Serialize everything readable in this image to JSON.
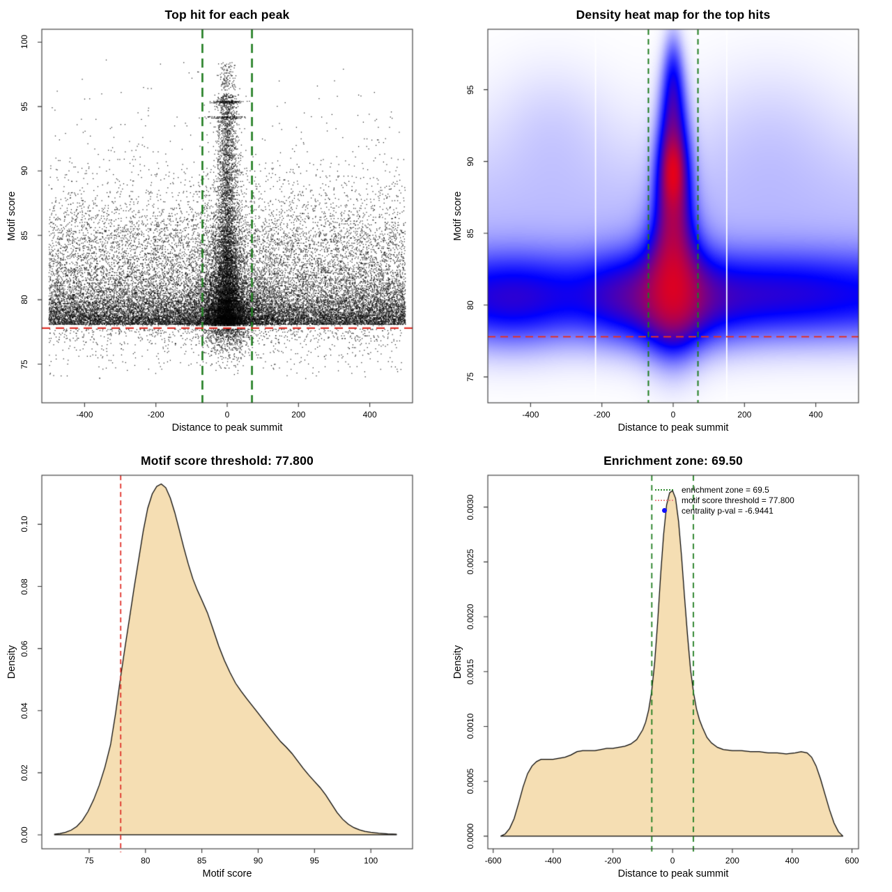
{
  "figure": {
    "background": "#ffffff",
    "threshold_value": 77.8,
    "enrichment_zone_value": 69.5,
    "colors": {
      "zone_line_green": "#1f7d1f",
      "threshold_line_red": "#e0322a",
      "density_fill_wheat": "#f5deb3",
      "curve_stroke": "#000000",
      "scatter_point": "#000000",
      "legend_green": "#2e8b2e",
      "legend_red": "#f08c8c",
      "legend_blue": "#0f0fff",
      "heat_low": "#ffffff",
      "heat_mid": "#0000ff",
      "heat_high": "#ff0000"
    }
  },
  "chart_data": [
    {
      "type": "scatter",
      "title": "Top hit for each peak",
      "xlabel": "Distance to peak summit",
      "ylabel": "Motif score",
      "xlim": [
        -520,
        520
      ],
      "ylim": [
        72.0,
        101.0
      ],
      "xticks": [
        -400,
        -200,
        0,
        200,
        400
      ],
      "yticks": [
        75,
        80,
        85,
        90,
        95,
        100
      ],
      "grid": false,
      "threshold_line": {
        "y": 77.8,
        "color": "#e0322a"
      },
      "zone_lines": {
        "x": [
          -69.5,
          69.5
        ],
        "color": "#1f7d1f"
      },
      "point_color": "#000000",
      "score_quantum": 0.1,
      "seed": 1234,
      "point_model": [
        {
          "n": 13800,
          "x": {
            "type": "uniform",
            "lo": -500,
            "hi": 500
          },
          "y": {
            "type": "exp",
            "base": 78.05,
            "mean": 1.55,
            "dir": 1,
            "clip": 93
          }
        },
        {
          "n": 6000,
          "x": {
            "type": "uniform",
            "lo": -500,
            "hi": 500
          },
          "y": {
            "type": "uniform",
            "lo": 78,
            "hi": 84.6
          }
        },
        {
          "n": 2400,
          "x": {
            "type": "uniform",
            "lo": -500,
            "hi": 500
          },
          "y": {
            "type": "exp",
            "base": 84.6,
            "mean": 2.3,
            "dir": 1,
            "clip": 96.5
          }
        },
        {
          "n": 800,
          "x": {
            "type": "uniform",
            "lo": -500,
            "hi": 500
          },
          "y": {
            "type": "exp",
            "base": 77.75,
            "mean": 1.15,
            "dir": -1,
            "clip": 73.8
          }
        },
        {
          "n": 4400,
          "x": {
            "type": "gauss",
            "sd": 24,
            "max": 115
          },
          "y": {
            "type": "exp",
            "base": 78,
            "mean": 3.0,
            "dir": 1,
            "clip": 96.5
          }
        },
        {
          "n": 2600,
          "x": {
            "type": "gauss",
            "sd": 14,
            "max": 60
          },
          "y": {
            "type": "uniform",
            "lo": 78,
            "hi": 96
          }
        },
        {
          "n": 2600,
          "x": {
            "type": "gauss",
            "sd": 60,
            "max": 200
          },
          "y": {
            "type": "exp",
            "base": 78,
            "mean": 2.0,
            "dir": 1,
            "clip": 92
          }
        },
        {
          "n": 600,
          "x": {
            "type": "gauss",
            "sd": 32,
            "max": 120
          },
          "y": {
            "type": "exp",
            "base": 77.75,
            "mean": 0.95,
            "dir": -1,
            "clip": 74.3
          }
        },
        {
          "n": 160,
          "x": {
            "type": "gauss",
            "sd": 20,
            "max": 70
          },
          "y": {
            "type": "const",
            "v": 95.35,
            "jitter": 0.05
          }
        },
        {
          "n": 110,
          "x": {
            "type": "gauss",
            "sd": 23,
            "max": 80
          },
          "y": {
            "type": "const",
            "v": 94.15,
            "jitter": 0.05
          }
        },
        {
          "n": 120,
          "x": {
            "type": "gauss",
            "sd": 12,
            "max": 40
          },
          "y": {
            "type": "uniform",
            "lo": 96.3,
            "hi": 98.4
          }
        },
        {
          "n": 18,
          "x": {
            "type": "uniform",
            "lo": -500,
            "hi": 500
          },
          "y": {
            "type": "uniform",
            "lo": 95.5,
            "hi": 98.6
          }
        }
      ]
    },
    {
      "type": "heatmap",
      "title": "Density heat map for the top hits",
      "xlabel": "Distance to peak summit",
      "ylabel": "Motif score",
      "xlim": [
        -520,
        520
      ],
      "ylim": [
        73.2,
        99.2
      ],
      "xticks": [
        -400,
        -200,
        0,
        200,
        400
      ],
      "yticks": [
        75,
        80,
        85,
        90,
        95
      ],
      "grid": false,
      "threshold_line": {
        "y": 77.8,
        "color": "#e0322a"
      },
      "zone_lines": {
        "x": [
          -69.5,
          69.5
        ],
        "color": "#1f7d1f"
      },
      "colormap": [
        "#ffffff",
        "#0000ff",
        "#ff0000"
      ],
      "white_streaks_x": [
        -218,
        150
      ],
      "density_blobs": [
        {
          "x": 0,
          "y": 89.2,
          "sx": 27,
          "sy": 2.3,
          "a": 1.15
        },
        {
          "x": 0,
          "y": 89.2,
          "sx": 13,
          "sy": 1.1,
          "a": 0.9
        },
        {
          "x": 0,
          "y": 85.0,
          "sx": 34,
          "sy": 3.4,
          "a": 0.85
        },
        {
          "x": 0,
          "y": 81.3,
          "sx": 55,
          "sy": 2.8,
          "a": 0.95
        },
        {
          "x": 0,
          "y": 80.2,
          "sx": 130,
          "sy": 2.0,
          "a": 0.42
        },
        {
          "x": 0,
          "y": 93.4,
          "sx": 24,
          "sy": 2.4,
          "a": 0.6
        },
        {
          "x": 0,
          "y": 96.2,
          "sx": 17,
          "sy": 1.9,
          "a": 0.28
        },
        {
          "x": 0,
          "y": 80.6,
          "sx": 1000000,
          "sy": 2.0,
          "a": 0.52
        },
        {
          "x": 0,
          "y": 85.5,
          "sx": 1000000,
          "sy": 4.5,
          "a": 0.12
        },
        {
          "x": -450,
          "y": 80.1,
          "sx": 95,
          "sy": 2.1,
          "a": 0.2
        },
        {
          "x": 320,
          "y": 80.9,
          "sx": 140,
          "sy": 1.8,
          "a": 0.15
        },
        {
          "x": -140,
          "y": 81.0,
          "sx": 70,
          "sy": 2.1,
          "a": 0.13
        },
        {
          "x": -340,
          "y": 92.6,
          "sx": 110,
          "sy": 3.0,
          "a": 0.06
        },
        {
          "x": 270,
          "y": 92.2,
          "sx": 140,
          "sy": 3.4,
          "a": 0.06
        }
      ]
    },
    {
      "type": "density",
      "title": "Motif score threshold: 77.800",
      "xlabel": "Motif score",
      "ylabel": "Density",
      "xlim": [
        70.8,
        103.7
      ],
      "ylim": [
        -0.0045,
        0.1158
      ],
      "xticks": [
        75,
        80,
        85,
        90,
        95,
        100
      ],
      "yticks": [
        0,
        0.02,
        0.04,
        0.06,
        0.08,
        0.1
      ],
      "ytick_labels": [
        "0.00",
        "0.02",
        "0.04",
        "0.06",
        "0.08",
        "0.10"
      ],
      "grid": false,
      "fill": "#f5deb3",
      "stroke": "#000000",
      "threshold_line": {
        "x": 77.8,
        "color": "#e0322a"
      },
      "curve": {
        "x": [
          71.9,
          72.4,
          72.9,
          73.4,
          73.9,
          74.4,
          74.9,
          75.4,
          75.9,
          76.4,
          76.9,
          77.35,
          77.8,
          78.2,
          78.6,
          79,
          79.4,
          79.8,
          80.2,
          80.6,
          81,
          81.4,
          81.8,
          82.2,
          82.6,
          83,
          83.4,
          83.8,
          84.2,
          84.6,
          85,
          85.5,
          86,
          86.5,
          87,
          87.5,
          88,
          88.5,
          89,
          89.5,
          90,
          90.5,
          91,
          91.5,
          92,
          92.5,
          93,
          93.5,
          94,
          94.5,
          95,
          95.5,
          96,
          96.5,
          97,
          97.5,
          98,
          98.5,
          99,
          99.5,
          100,
          100.7,
          101.5,
          102.3
        ],
        "y": [
          0.0002,
          0.0004,
          0.0008,
          0.0015,
          0.0027,
          0.0046,
          0.0075,
          0.0113,
          0.016,
          0.0218,
          0.029,
          0.0392,
          0.051,
          0.0608,
          0.0702,
          0.0798,
          0.0888,
          0.0978,
          0.1052,
          0.1098,
          0.1122,
          0.113,
          0.1118,
          0.1085,
          0.1038,
          0.0982,
          0.0925,
          0.0872,
          0.0825,
          0.0788,
          0.0756,
          0.0715,
          0.0662,
          0.0608,
          0.0562,
          0.0523,
          0.0488,
          0.0462,
          0.0438,
          0.0415,
          0.0392,
          0.0368,
          0.0345,
          0.0322,
          0.03,
          0.0282,
          0.0262,
          0.0238,
          0.0214,
          0.0192,
          0.0172,
          0.0152,
          0.0128,
          0.01,
          0.0072,
          0.005,
          0.0034,
          0.0023,
          0.0016,
          0.0011,
          0.0008,
          0.0005,
          0.0003,
          0.0002
        ]
      }
    },
    {
      "type": "density",
      "title": "Enrichment zone: 69.50",
      "xlabel": "Distance to peak summit",
      "ylabel": "Density",
      "xlim": [
        -618,
        622
      ],
      "ylim": [
        -0.000115,
        0.00329
      ],
      "xticks": [
        -600,
        -400,
        -200,
        0,
        200,
        400,
        600
      ],
      "yticks": [
        0,
        0.0005,
        0.001,
        0.0015,
        0.002,
        0.0025,
        0.003
      ],
      "ytick_labels": [
        "0.0000",
        "0.0005",
        "0.0010",
        "0.0015",
        "0.0020",
        "0.0025",
        "0.0030"
      ],
      "grid": false,
      "fill": "#f5deb3",
      "stroke": "#000000",
      "zone_lines": {
        "x": [
          -69.5,
          69.5
        ],
        "color": "#1f7d1f"
      },
      "legend": {
        "position": "topright",
        "items": [
          {
            "swatch": "dotted",
            "color": "#2e8b2e",
            "label": "enrichment zone = 69.5"
          },
          {
            "swatch": "dotted",
            "color": "#f08c8c",
            "label": "motif score threshold = 77.800"
          },
          {
            "swatch": "dot",
            "color": "#0f0fff",
            "label": "centrality p-val = -6.9441"
          }
        ]
      },
      "curve": {
        "x": [
          -575,
          -560,
          -545,
          -530,
          -515,
          -500,
          -485,
          -470,
          -455,
          -440,
          -420,
          -400,
          -380,
          -360,
          -340,
          -320,
          -300,
          -280,
          -260,
          -240,
          -220,
          -200,
          -180,
          -160,
          -140,
          -120,
          -100,
          -90,
          -80,
          -70,
          -60,
          -50,
          -40,
          -30,
          -20,
          -10,
          0,
          10,
          20,
          30,
          40,
          50,
          60,
          70,
          80,
          90,
          100,
          115,
          130,
          150,
          170,
          200,
          230,
          260,
          290,
          320,
          350,
          380,
          410,
          430,
          450,
          465,
          480,
          495,
          510,
          525,
          540,
          555,
          570
        ],
        "y": [
          0,
          2e-05,
          7e-05,
          0.00016,
          0.0003,
          0.00045,
          0.00057,
          0.00064,
          0.00068,
          0.0007,
          0.0007,
          0.0007,
          0.00071,
          0.00072,
          0.00074,
          0.00077,
          0.00078,
          0.00078,
          0.00078,
          0.00079,
          0.0008,
          0.0008,
          0.00081,
          0.00082,
          0.00084,
          0.00088,
          0.00097,
          0.00104,
          0.00115,
          0.00132,
          0.00158,
          0.00195,
          0.00238,
          0.00275,
          0.00302,
          0.00313,
          0.00315,
          0.00308,
          0.00287,
          0.00255,
          0.00218,
          0.00183,
          0.00152,
          0.00131,
          0.00116,
          0.00106,
          0.00099,
          0.0009,
          0.00085,
          0.00081,
          0.00079,
          0.00078,
          0.00078,
          0.00077,
          0.00077,
          0.00076,
          0.00076,
          0.00075,
          0.00076,
          0.00077,
          0.00076,
          0.00072,
          0.00064,
          0.00052,
          0.00038,
          0.00024,
          0.00012,
          4e-05,
          0
        ]
      }
    }
  ]
}
